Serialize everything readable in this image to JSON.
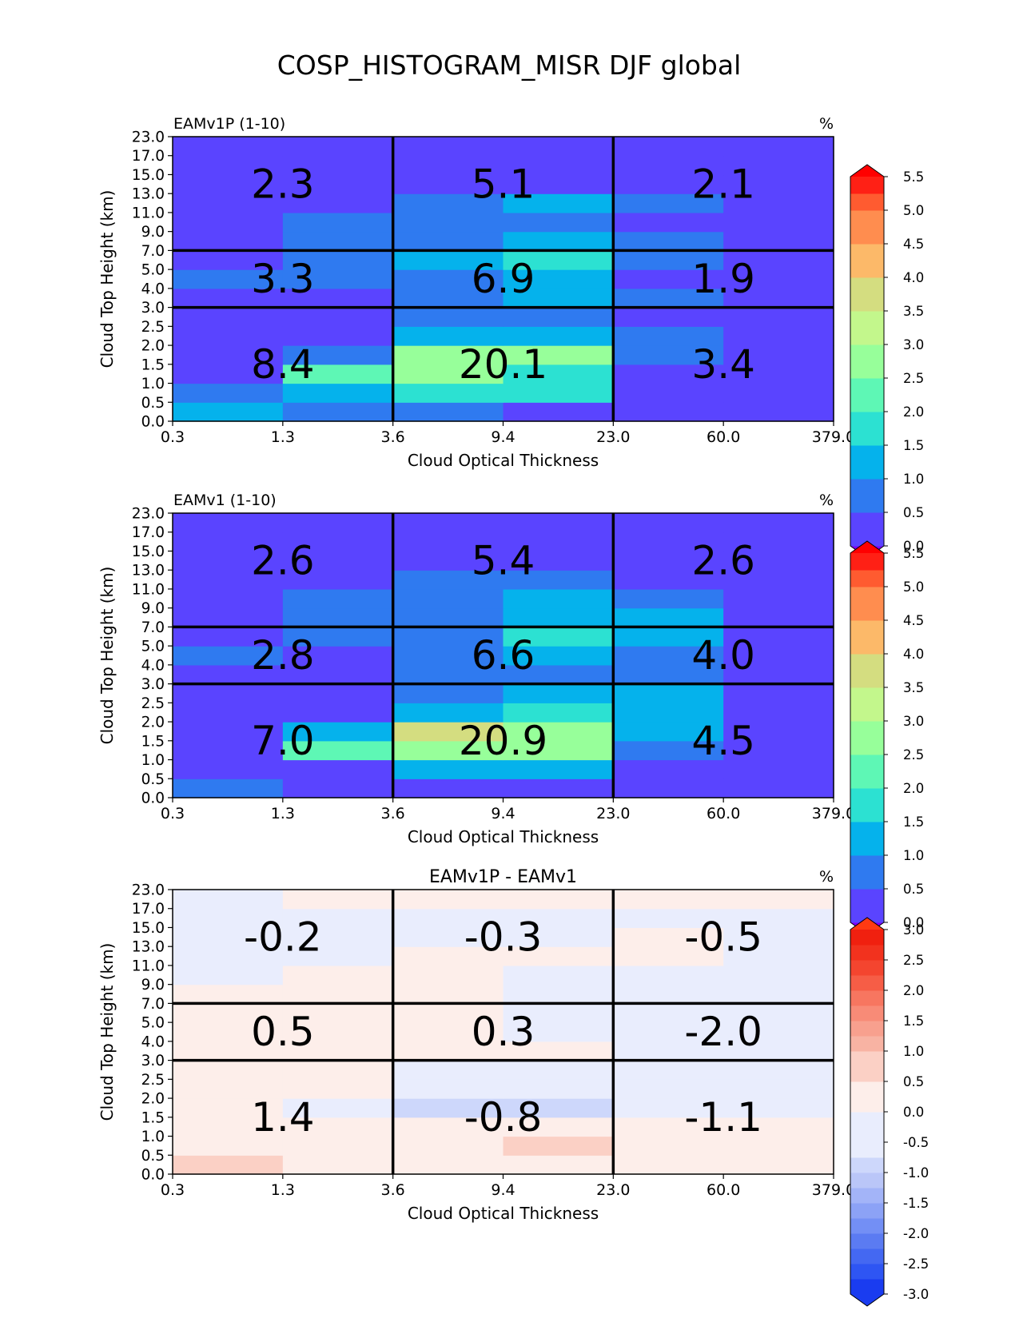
{
  "figure": {
    "title": "COSP_HISTOGRAM_MISR DJF global"
  },
  "chart_data": [
    {
      "type": "heatmap",
      "title": "EAMv1P (1-10)",
      "title_position": "left",
      "units": "%",
      "xlabel": "Cloud Optical Thickness",
      "ylabel": "Cloud Top Height (km)",
      "x_tick_labels": [
        "0.3",
        "1.3",
        "3.6",
        "9.4",
        "23.0",
        "60.0",
        "379.0"
      ],
      "y_tick_labels": [
        "0.0",
        "0.5",
        "1.0",
        "1.5",
        "2.0",
        "2.5",
        "3.0",
        "4.0",
        "5.0",
        "7.0",
        "9.0",
        "11.0",
        "13.0",
        "15.0",
        "17.0",
        "23.0"
      ],
      "values_bottom_to_top": [
        [
          1.3,
          0.7,
          0.7,
          0.3,
          0.3,
          0.3
        ],
        [
          0.7,
          1.3,
          1.7,
          1.7,
          0.3,
          0.3
        ],
        [
          0.3,
          2.2,
          2.7,
          1.7,
          0.3,
          0.3
        ],
        [
          0.3,
          0.7,
          2.7,
          2.7,
          0.7,
          0.3
        ],
        [
          0.3,
          0.3,
          1.3,
          1.3,
          0.7,
          0.3
        ],
        [
          0.3,
          0.3,
          0.7,
          0.7,
          0.3,
          0.3
        ],
        [
          0.3,
          0.3,
          0.7,
          1.3,
          0.7,
          0.3
        ],
        [
          0.7,
          0.7,
          0.7,
          1.3,
          0.3,
          0.3
        ],
        [
          0.3,
          0.7,
          1.3,
          1.7,
          0.7,
          0.3
        ],
        [
          0.3,
          0.7,
          0.7,
          1.3,
          0.7,
          0.3
        ],
        [
          0.3,
          0.7,
          0.7,
          0.7,
          0.3,
          0.3
        ],
        [
          0.3,
          0.3,
          0.7,
          1.3,
          0.7,
          0.3
        ],
        [
          0.3,
          0.3,
          0.3,
          0.3,
          0.3,
          0.3
        ],
        [
          0.3,
          0.3,
          0.3,
          0.3,
          0.3,
          0.3
        ],
        [
          0.3,
          0.3,
          0.3,
          0.3,
          0.3,
          0.3
        ]
      ],
      "group_values": [
        [
          "2.3",
          "5.1",
          "2.1"
        ],
        [
          "3.3",
          "6.9",
          "1.9"
        ],
        [
          "8.4",
          "20.1",
          "3.4"
        ]
      ],
      "colorbar": {
        "extend": "both",
        "boundaries": [
          0,
          0.25,
          0.5,
          0.75,
          1,
          1.25,
          1.5,
          1.75,
          2,
          2.25,
          2.5,
          2.75,
          3,
          3.25,
          3.5,
          3.75,
          4,
          4.25,
          4.5,
          4.75,
          5,
          5.25,
          5.5
        ],
        "tick_labels": [
          "0.0",
          "0.5",
          "1.0",
          "1.5",
          "2.0",
          "2.5",
          "3.0",
          "3.5",
          "4.0",
          "4.5",
          "5.0",
          "5.5"
        ],
        "colors": [
          "#5a44ff",
          "#5a44ff",
          "#2f7af0",
          "#2f7af0",
          "#05b2ec",
          "#05b2ec",
          "#2ce1d2",
          "#2ce1d2",
          "#5ef7b5",
          "#5ef7b5",
          "#97ff9a",
          "#97ff9a",
          "#c3f78c",
          "#c3f78c",
          "#d4dd80",
          "#d4dd80",
          "#fcb969",
          "#fcb969",
          "#ff8d4f",
          "#ff8d4f",
          "#ff5b30",
          "#ff2015"
        ],
        "under_color": "#8000ff",
        "over_color": "#ff0000"
      }
    },
    {
      "type": "heatmap",
      "title": "EAMv1 (1-10)",
      "title_position": "left",
      "units": "%",
      "xlabel": "Cloud Optical Thickness",
      "ylabel": "Cloud Top Height (km)",
      "x_tick_labels": [
        "0.3",
        "1.3",
        "3.6",
        "9.4",
        "23.0",
        "60.0",
        "379.0"
      ],
      "y_tick_labels": [
        "0.0",
        "0.5",
        "1.0",
        "1.5",
        "2.0",
        "2.5",
        "3.0",
        "4.0",
        "5.0",
        "7.0",
        "9.0",
        "11.0",
        "13.0",
        "15.0",
        "17.0",
        "23.0"
      ],
      "values_bottom_to_top": [
        [
          0.7,
          0.3,
          0.3,
          0.3,
          0.3,
          0.3
        ],
        [
          0.3,
          0.3,
          1.3,
          1.3,
          0.3,
          0.3
        ],
        [
          0.3,
          2.2,
          2.7,
          2.7,
          0.7,
          0.3
        ],
        [
          0.3,
          1.3,
          3.7,
          2.7,
          1.3,
          0.3
        ],
        [
          0.3,
          0.3,
          1.3,
          1.7,
          1.3,
          0.3
        ],
        [
          0.3,
          0.3,
          0.7,
          1.3,
          1.3,
          0.3
        ],
        [
          0.3,
          0.3,
          0.7,
          0.7,
          0.7,
          0.3
        ],
        [
          0.7,
          0.3,
          0.7,
          1.3,
          0.7,
          0.3
        ],
        [
          0.3,
          0.7,
          0.7,
          1.7,
          1.3,
          0.3
        ],
        [
          0.3,
          0.7,
          0.7,
          1.3,
          1.3,
          0.3
        ],
        [
          0.3,
          0.7,
          0.7,
          1.3,
          0.7,
          0.3
        ],
        [
          0.3,
          0.3,
          0.7,
          0.7,
          0.3,
          0.3
        ],
        [
          0.3,
          0.3,
          0.3,
          0.3,
          0.3,
          0.3
        ],
        [
          0.3,
          0.3,
          0.3,
          0.3,
          0.3,
          0.3
        ],
        [
          0.3,
          0.3,
          0.3,
          0.3,
          0.3,
          0.3
        ]
      ],
      "group_values": [
        [
          "2.6",
          "5.4",
          "2.6"
        ],
        [
          "2.8",
          "6.6",
          "4.0"
        ],
        [
          "7.0",
          "20.9",
          "4.5"
        ]
      ],
      "colorbar": {
        "extend": "both",
        "boundaries": [
          0,
          0.25,
          0.5,
          0.75,
          1,
          1.25,
          1.5,
          1.75,
          2,
          2.25,
          2.5,
          2.75,
          3,
          3.25,
          3.5,
          3.75,
          4,
          4.25,
          4.5,
          4.75,
          5,
          5.25,
          5.5
        ],
        "tick_labels": [
          "0.0",
          "0.5",
          "1.0",
          "1.5",
          "2.0",
          "2.5",
          "3.0",
          "3.5",
          "4.0",
          "4.5",
          "5.0",
          "5.5"
        ],
        "colors": [
          "#5a44ff",
          "#5a44ff",
          "#2f7af0",
          "#2f7af0",
          "#05b2ec",
          "#05b2ec",
          "#2ce1d2",
          "#2ce1d2",
          "#5ef7b5",
          "#5ef7b5",
          "#97ff9a",
          "#97ff9a",
          "#c3f78c",
          "#c3f78c",
          "#d4dd80",
          "#d4dd80",
          "#fcb969",
          "#fcb969",
          "#ff8d4f",
          "#ff8d4f",
          "#ff5b30",
          "#ff2015"
        ],
        "under_color": "#8000ff",
        "over_color": "#ff0000"
      }
    },
    {
      "type": "heatmap",
      "title": "EAMv1P - EAMv1",
      "title_position": "center",
      "units": "%",
      "xlabel": "Cloud Optical Thickness",
      "ylabel": "Cloud Top Height (km)",
      "x_tick_labels": [
        "0.3",
        "1.3",
        "3.6",
        "9.4",
        "23.0",
        "60.0",
        "379.0"
      ],
      "y_tick_labels": [
        "0.0",
        "0.5",
        "1.0",
        "1.5",
        "2.0",
        "2.5",
        "3.0",
        "4.0",
        "5.0",
        "7.0",
        "9.0",
        "11.0",
        "13.0",
        "15.0",
        "17.0",
        "23.0"
      ],
      "values_bottom_to_top": [
        [
          0.7,
          0.2,
          0.2,
          0.2,
          0.2,
          0.2
        ],
        [
          0.2,
          0.2,
          0.2,
          0.7,
          0.2,
          0.2
        ],
        [
          0.2,
          0.2,
          0.2,
          0.2,
          0.2,
          0.2
        ],
        [
          0.2,
          -0.2,
          -0.8,
          -0.8,
          -0.2,
          -0.2
        ],
        [
          0.2,
          0.2,
          -0.2,
          -0.2,
          -0.6,
          -0.2
        ],
        [
          0.2,
          0.2,
          -0.2,
          -0.2,
          -0.2,
          -0.2
        ],
        [
          0.2,
          0.2,
          0.2,
          0.2,
          -0.2,
          -0.2
        ],
        [
          0.2,
          0.2,
          0.2,
          -0.2,
          -0.2,
          -0.2
        ],
        [
          0.2,
          0.2,
          0.2,
          -0.2,
          -0.6,
          -0.2
        ],
        [
          0.2,
          0.2,
          0.2,
          -0.2,
          -0.2,
          -0.2
        ],
        [
          -0.2,
          0.2,
          0.2,
          -0.2,
          -0.2,
          -0.2
        ],
        [
          -0.2,
          -0.2,
          0.2,
          0.2,
          0.2,
          -0.2
        ],
        [
          -0.2,
          -0.2,
          -0.2,
          -0.2,
          0.2,
          -0.2
        ],
        [
          -0.2,
          -0.2,
          -0.2,
          -0.2,
          -0.2,
          -0.2
        ],
        [
          -0.2,
          0.2,
          0.2,
          0.2,
          0.2,
          0.2
        ]
      ],
      "group_values": [
        [
          "-0.2",
          "-0.3",
          "-0.5"
        ],
        [
          "0.5",
          "0.3",
          "-2.0"
        ],
        [
          "1.4",
          "-0.8",
          "-1.1"
        ]
      ],
      "colorbar": {
        "extend": "both",
        "boundaries": [
          -3,
          -2.75,
          -2.5,
          -2.25,
          -2,
          -1.75,
          -1.5,
          -1.25,
          -1,
          -0.75,
          -0.5,
          -0.25,
          0,
          0.25,
          0.5,
          0.75,
          1,
          1.25,
          1.5,
          1.75,
          2,
          2.25,
          2.5,
          2.75,
          3
        ],
        "tick_labels": [
          "-3.0",
          "-2.5",
          "-2.0",
          "-1.5",
          "-1.0",
          "-0.5",
          "0.0",
          "0.5",
          "1.0",
          "1.5",
          "2.0",
          "2.5",
          "3.0"
        ],
        "colors": [
          "#1a3cf0",
          "#2e55f3",
          "#4468f2",
          "#5b7bf2",
          "#738ff5",
          "#8ca2f6",
          "#a3b4f8",
          "#bac6f8",
          "#cdd7fb",
          "#e9edfd",
          "#e9edfd",
          "#e9edfd",
          "#fdeeea",
          "#fdeeea",
          "#fbd0c5",
          "#fbd0c5",
          "#f8b3a3",
          "#f8a08e",
          "#f88b77",
          "#f77660",
          "#f65d46",
          "#f4452f",
          "#f2321e",
          "#f0200f"
        ],
        "under_color": "#1a3cf0",
        "over_color": "#ff3a12"
      }
    }
  ]
}
